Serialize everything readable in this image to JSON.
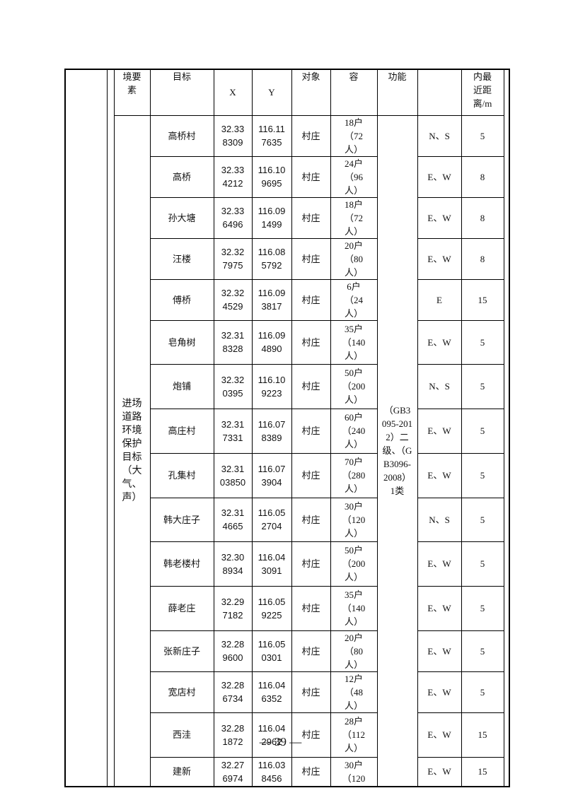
{
  "table": {
    "header": [
      "境要素",
      "目标",
      "X",
      "Y",
      "对象",
      "容",
      "功能",
      "内最近距离/m"
    ],
    "category": "进场道路环境保护目标（大气、声）",
    "function": "（GB3095-2012）二级、（GB3096-2008）1类",
    "rows": [
      [
        "高桥村",
        "32.338309",
        "116.117635",
        "村庄",
        "18户（72人）",
        "N、S",
        "5"
      ],
      [
        "高桥",
        "32.334212",
        "116.109695",
        "村庄",
        "24户（96人）",
        "E、W",
        "8"
      ],
      [
        "孙大塘",
        "32.336496",
        "116.091499",
        "村庄",
        "18户（72人）",
        "E、W",
        "8"
      ],
      [
        "汪楼",
        "32.327975",
        "116.085792",
        "村庄",
        "20户（80人）",
        "E、W",
        "8"
      ],
      [
        "傅桥",
        "32.324529",
        "116.093817",
        "村庄",
        "6户（24人）",
        "E",
        "15"
      ],
      [
        "皂角树",
        "32.318328",
        "116.094890",
        "村庄",
        "35户（140人）",
        "E、W",
        "5"
      ],
      [
        "炮铺",
        "32.320395",
        "116.109223",
        "村庄",
        "50户（200人）",
        "N、S",
        "5"
      ],
      [
        "高庄村",
        "32.317331",
        "116.078389",
        "村庄",
        "60户（240人）",
        "E、W",
        "5"
      ],
      [
        "孔集村",
        "32.3103850",
        "116.073904",
        "村庄",
        "70户（280人）",
        "E、W",
        "5"
      ],
      [
        "韩大庄子",
        "32.314665",
        "116.052704",
        "村庄",
        "30户（120人）",
        "N、S",
        "5"
      ],
      [
        "韩老楼村",
        "32.308934",
        "116.043091",
        "村庄",
        "50户（200人）",
        "E、W",
        "5"
      ],
      [
        "薛老庄",
        "32.297182",
        "116.059225",
        "村庄",
        "35户（140人）",
        "E、W",
        "5"
      ],
      [
        "张新庄子",
        "32.289600",
        "116.050301",
        "村庄",
        "20户（80人）",
        "E、W",
        "5"
      ],
      [
        "宽店村",
        "32.286734",
        "116.046352",
        "村庄",
        "12户（48人）",
        "E、W",
        "5"
      ],
      [
        "西洼",
        "32.281872",
        "116.042962",
        "村庄",
        "28户（112人）",
        "E、W",
        "15"
      ],
      [
        "建新",
        "32.276974",
        "116.038456",
        "村庄",
        "30户（120",
        "E、W",
        "15"
      ]
    ]
  },
  "footer": {
    "page": "— 39 —"
  }
}
